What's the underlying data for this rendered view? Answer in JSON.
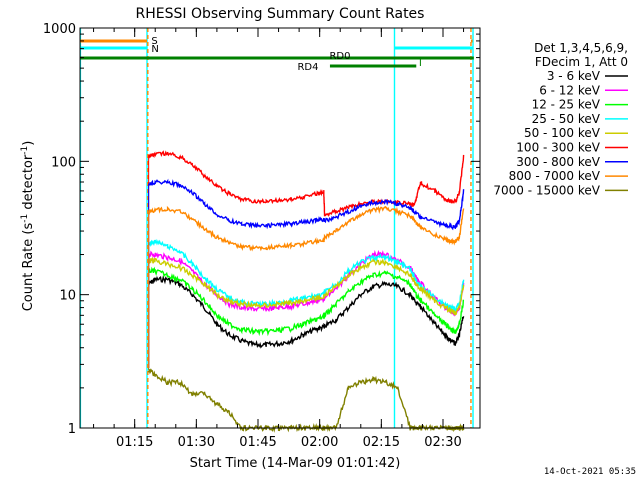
{
  "chart_data": {
    "type": "line",
    "title": "RHESSI Observing Summary Count Rates",
    "xlabel": "Start Time (14-Mar-09 01:01:42)",
    "ylabel_main": "Count Rate (s",
    "ylabel_sup1": "-1",
    "ylabel_mid": " detector",
    "ylabel_sup2": "-1",
    "ylabel_end": ")",
    "yscale": "log",
    "ylim": [
      1,
      1000
    ],
    "xlim_minutes": [
      61.7,
      159.0
    ],
    "x_ticks": [
      {
        "label": "01:15",
        "min": 75
      },
      {
        "label": "01:30",
        "min": 90
      },
      {
        "label": "01:45",
        "min": 105
      },
      {
        "label": "02:00",
        "min": 120
      },
      {
        "label": "02:15",
        "min": 135
      },
      {
        "label": "02:30",
        "min": 150
      }
    ],
    "y_ticks": [
      {
        "label": "1",
        "value": 1
      },
      {
        "label": "10",
        "value": 10
      },
      {
        "label": "100",
        "value": 100
      },
      {
        "label": "1000",
        "value": 1000
      }
    ],
    "legend_header": [
      "Det 1,3,4,5,6,9,",
      "FDecim 1, Att 0"
    ],
    "legend_placement": "right",
    "x_minutes": [
      78.4,
      80,
      83,
      86,
      89,
      92,
      95,
      98,
      101,
      104,
      107,
      110,
      113,
      116,
      119,
      121,
      121.2,
      124,
      127,
      130,
      133,
      136,
      139,
      142,
      143,
      144.5,
      144.8,
      148,
      150.5,
      152,
      153,
      154,
      155
    ],
    "series": [
      {
        "name": "3 - 6 keV",
        "color": "#000000",
        "values": [
          12,
          13,
          13,
          12,
          10,
          8,
          6,
          5,
          4.5,
          4.2,
          4.2,
          4.3,
          4.5,
          5,
          5.5,
          5.7,
          5.8,
          6.5,
          8,
          10,
          11.5,
          12,
          11.5,
          10,
          9,
          8,
          8,
          6,
          5,
          4.5,
          4.3,
          5,
          7
        ]
      },
      {
        "name": "6 - 12 keV",
        "color": "#ff00ff",
        "values": [
          20,
          20,
          19,
          18,
          15,
          12,
          10,
          8.5,
          8,
          7.8,
          7.8,
          8,
          8.2,
          8.5,
          9,
          9.3,
          9.5,
          11,
          14,
          17,
          20,
          20,
          18,
          16,
          14,
          12,
          12,
          9.5,
          8,
          7.5,
          7.3,
          8,
          12
        ]
      },
      {
        "name": "12 - 25 keV",
        "color": "#00ff00",
        "values": [
          15,
          15,
          14,
          13,
          11,
          9,
          7,
          6,
          5.5,
          5.3,
          5.3,
          5.4,
          5.6,
          6,
          6.5,
          6.8,
          7,
          8.5,
          10.5,
          12.5,
          14,
          14.5,
          13.5,
          12,
          10.5,
          9,
          9,
          7,
          6,
          5.5,
          5.3,
          6,
          9
        ]
      },
      {
        "name": "25 - 50 keV",
        "color": "#00ffff",
        "values": [
          24,
          25,
          23,
          21,
          17,
          13.5,
          11,
          9.5,
          8.8,
          8.5,
          8.5,
          8.7,
          9,
          9.4,
          9.8,
          10,
          10.5,
          12,
          15,
          17.5,
          19,
          19,
          17.5,
          15.5,
          13.5,
          11.5,
          11.5,
          9.5,
          8.5,
          8,
          7.8,
          8.5,
          13
        ]
      },
      {
        "name": "50 - 100 keV",
        "color": "#cccc00",
        "values": [
          18,
          18,
          17,
          16,
          14,
          12,
          10,
          9,
          8.5,
          8.3,
          8.3,
          8.5,
          8.7,
          9,
          9.4,
          9.6,
          10,
          11.5,
          14,
          16,
          17.5,
          17.5,
          16,
          14,
          12.5,
          11,
          11,
          9,
          8,
          7.5,
          7.3,
          8,
          12
        ]
      },
      {
        "name": "100 - 300 keV",
        "color": "#ff0000",
        "values": [
          110,
          112,
          115,
          108,
          95,
          78,
          65,
          57,
          52,
          50,
          50,
          51,
          52,
          54,
          57,
          59,
          40,
          42,
          45,
          48,
          50,
          50,
          49,
          48,
          47,
          68,
          68,
          60,
          52,
          50,
          50,
          58,
          110
        ]
      },
      {
        "name": "300 - 800 keV",
        "color": "#0000ff",
        "values": [
          68,
          70,
          70,
          66,
          58,
          48,
          40,
          36,
          34,
          33,
          33,
          33.5,
          34,
          35,
          36,
          36.5,
          36,
          38,
          42,
          46,
          49,
          50,
          48,
          45,
          42,
          38,
          38,
          35,
          33,
          32.5,
          32,
          36,
          60
        ]
      },
      {
        "name": "800 - 7000 keV",
        "color": "#ff8800",
        "values": [
          42,
          43,
          44,
          42,
          37,
          31,
          27,
          24.5,
          23,
          22.5,
          22.5,
          23,
          23.5,
          24,
          25,
          25.5,
          27,
          30,
          35,
          40,
          43,
          44,
          42,
          39,
          36,
          32,
          32,
          28,
          26,
          25,
          25,
          27,
          45
        ]
      },
      {
        "name": "7000 - 15000 keV",
        "color": "#808000",
        "values": [
          2.7,
          2.5,
          2.2,
          2.2,
          1.8,
          1.8,
          1.5,
          1.3,
          1,
          1,
          1,
          1,
          1,
          1,
          1,
          1,
          1,
          1,
          2,
          2.2,
          2.3,
          2.2,
          2.0,
          1,
          1,
          1,
          1,
          1,
          1,
          1,
          1,
          1,
          1
        ]
      }
    ],
    "annotations": [
      {
        "label": "S",
        "color": "#ff8800"
      },
      {
        "label": "N",
        "color": "#00ffff"
      },
      {
        "label": "RD0",
        "color": "#008000"
      },
      {
        "label": "RD4",
        "color": "#008000"
      }
    ],
    "footer_date": "14-Oct-2021 05:35"
  }
}
